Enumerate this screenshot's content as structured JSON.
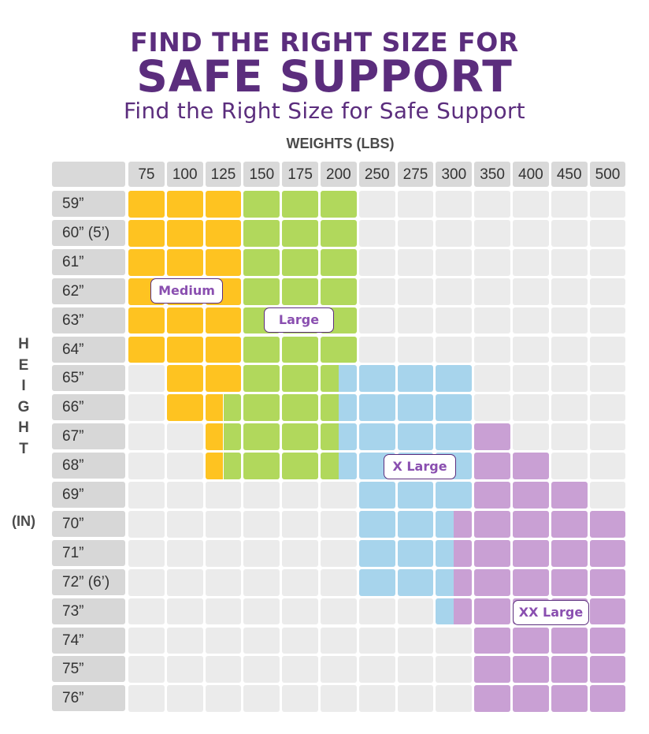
{
  "title_line1": "FIND THE RIGHT SIZE FOR",
  "title_line2": "SAFE SUPPORT",
  "subtitle": "Find the Right Size for Safe Support",
  "colors": {
    "title": "#5b2d7d",
    "empty": "#ebebeb",
    "Medium": "#fec321",
    "Large": "#b1d85c",
    "X Large": "#a7d4ec",
    "XX Large": "#c9a0d4"
  },
  "chart_data": {
    "type": "table",
    "xlabel": "WEIGHTS (LBS)",
    "ylabel_letters": [
      "H",
      "E",
      "I",
      "G",
      "H",
      "T"
    ],
    "ylabel_unit": "(IN)",
    "weights": [
      "75",
      "100",
      "125",
      "150",
      "175",
      "200",
      "250",
      "275",
      "300",
      "350",
      "400",
      "450",
      "500"
    ],
    "heights": [
      "59”",
      "60” (5’)",
      "61”",
      "62”",
      "63”",
      "64”",
      "65”",
      "66”",
      "67”",
      "68”",
      "69”",
      "70”",
      "71”",
      "72” (6’)",
      "73”",
      "74”",
      "75”",
      "76”"
    ],
    "size_codes": {
      "M": "Medium",
      "L": "Large",
      "XL": "X Large",
      "XXL": "XX Large"
    },
    "grid": [
      [
        [
          "M"
        ],
        [
          "M"
        ],
        [
          "M"
        ],
        [
          "L"
        ],
        [
          "L"
        ],
        [
          "L"
        ],
        [],
        [],
        [],
        [],
        [],
        [],
        []
      ],
      [
        [
          "M"
        ],
        [
          "M"
        ],
        [
          "M"
        ],
        [
          "L"
        ],
        [
          "L"
        ],
        [
          "L"
        ],
        [],
        [],
        [],
        [],
        [],
        [],
        []
      ],
      [
        [
          "M"
        ],
        [
          "M"
        ],
        [
          "M"
        ],
        [
          "L"
        ],
        [
          "L"
        ],
        [
          "L"
        ],
        [],
        [],
        [],
        [],
        [],
        [],
        []
      ],
      [
        [
          "M"
        ],
        [
          "M"
        ],
        [
          "M"
        ],
        [
          "L"
        ],
        [
          "L"
        ],
        [
          "L"
        ],
        [],
        [],
        [],
        [],
        [],
        [],
        []
      ],
      [
        [
          "M"
        ],
        [
          "M"
        ],
        [
          "M"
        ],
        [
          "L"
        ],
        [
          "L"
        ],
        [
          "L"
        ],
        [],
        [],
        [],
        [],
        [],
        [],
        []
      ],
      [
        [
          "M"
        ],
        [
          "M"
        ],
        [
          "M"
        ],
        [
          "L"
        ],
        [
          "L"
        ],
        [
          "L"
        ],
        [],
        [],
        [],
        [],
        [],
        [],
        []
      ],
      [
        [],
        [
          "M"
        ],
        [
          "M"
        ],
        [
          "L"
        ],
        [
          "L"
        ],
        [
          "L",
          "XL"
        ],
        [
          "XL"
        ],
        [
          "XL"
        ],
        [
          "XL"
        ],
        [],
        [],
        [],
        []
      ],
      [
        [],
        [
          "M"
        ],
        [
          "M",
          "L"
        ],
        [
          "L"
        ],
        [
          "L"
        ],
        [
          "L",
          "XL"
        ],
        [
          "XL"
        ],
        [
          "XL"
        ],
        [
          "XL"
        ],
        [],
        [],
        [],
        []
      ],
      [
        [],
        [],
        [
          "M",
          "L"
        ],
        [
          "L"
        ],
        [
          "L"
        ],
        [
          "L",
          "XL"
        ],
        [
          "XL"
        ],
        [
          "XL"
        ],
        [
          "XL"
        ],
        [
          "XXL"
        ],
        [],
        [],
        []
      ],
      [
        [],
        [],
        [
          "M",
          "L"
        ],
        [
          "L"
        ],
        [
          "L"
        ],
        [
          "L",
          "XL"
        ],
        [
          "XL"
        ],
        [
          "XL"
        ],
        [
          "XL"
        ],
        [
          "XXL"
        ],
        [
          "XXL"
        ],
        [],
        []
      ],
      [
        [],
        [],
        [],
        [],
        [],
        [],
        [
          "XL"
        ],
        [
          "XL"
        ],
        [
          "XL"
        ],
        [
          "XXL"
        ],
        [
          "XXL"
        ],
        [
          "XXL"
        ],
        []
      ],
      [
        [],
        [],
        [],
        [],
        [],
        [],
        [
          "XL"
        ],
        [
          "XL"
        ],
        [
          "XL",
          "XXL"
        ],
        [
          "XXL"
        ],
        [
          "XXL"
        ],
        [
          "XXL"
        ],
        [
          "XXL"
        ]
      ],
      [
        [],
        [],
        [],
        [],
        [],
        [],
        [
          "XL"
        ],
        [
          "XL"
        ],
        [
          "XL",
          "XXL"
        ],
        [
          "XXL"
        ],
        [
          "XXL"
        ],
        [
          "XXL"
        ],
        [
          "XXL"
        ]
      ],
      [
        [],
        [],
        [],
        [],
        [],
        [],
        [
          "XL"
        ],
        [
          "XL"
        ],
        [
          "XL",
          "XXL"
        ],
        [
          "XXL"
        ],
        [
          "XXL"
        ],
        [
          "XXL"
        ],
        [
          "XXL"
        ]
      ],
      [
        [],
        [],
        [],
        [],
        [],
        [],
        [],
        [],
        [
          "XL",
          "XXL"
        ],
        [
          "XXL"
        ],
        [
          "XXL"
        ],
        [
          "XXL"
        ],
        [
          "XXL"
        ]
      ],
      [
        [],
        [],
        [],
        [],
        [],
        [],
        [],
        [],
        [],
        [
          "XXL"
        ],
        [
          "XXL"
        ],
        [
          "XXL"
        ],
        [
          "XXL"
        ]
      ],
      [
        [],
        [],
        [],
        [],
        [],
        [],
        [],
        [],
        [],
        [
          "XXL"
        ],
        [
          "XXL"
        ],
        [
          "XXL"
        ],
        [
          "XXL"
        ]
      ],
      [
        [],
        [],
        [],
        [],
        [],
        [],
        [],
        [],
        [],
        [
          "XXL"
        ],
        [
          "XXL"
        ],
        [
          "XXL"
        ],
        [
          "XXL"
        ]
      ]
    ],
    "region_labels": [
      {
        "text": "Medium",
        "code": "M"
      },
      {
        "text": "Large",
        "code": "L"
      },
      {
        "text": "X Large",
        "code": "XL"
      },
      {
        "text": "XX Large",
        "code": "XXL"
      }
    ]
  }
}
